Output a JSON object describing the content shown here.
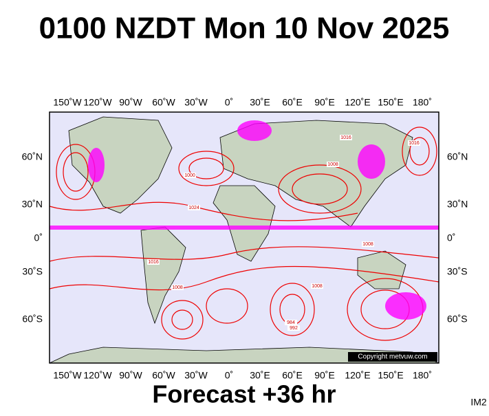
{
  "title": "0100 NZDT Mon 10 Nov 2025",
  "lon_labels": [
    "150˚W",
    "120˚W",
    "90˚W",
    "60˚W",
    "30˚W",
    "0˚",
    "30˚E",
    "60˚E",
    "90˚E",
    "120˚E",
    "150˚E",
    "180˚"
  ],
  "lat_labels": [
    "60˚N",
    "30˚N",
    "0˚",
    "30˚S",
    "60˚S"
  ],
  "isobar_labels": [
    "1016",
    "1008",
    "1000",
    "1024",
    "1016",
    "1008",
    "1008",
    "984",
    "992",
    "1008",
    "1016"
  ],
  "copyright": "Copyright metvuw.com",
  "forecast": "Forecast +36 hr",
  "image_id": "IM2"
}
